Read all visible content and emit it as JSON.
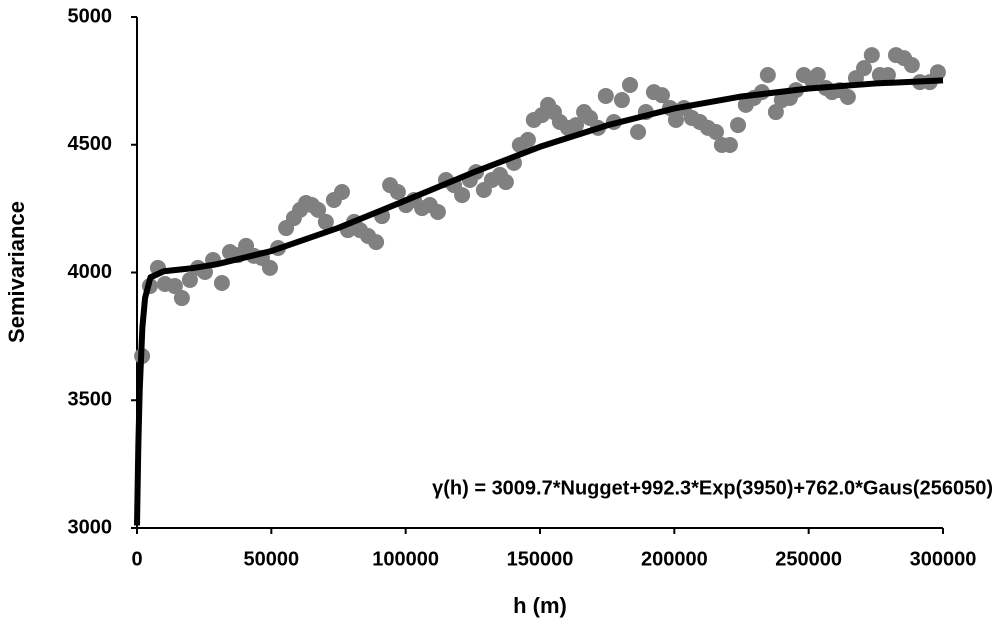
{
  "chart_data": {
    "type": "scatter",
    "xlabel": "h (m)",
    "ylabel": "Semivariance",
    "annotation": "γ(h) = 3009.7*Nugget+992.3*Exp(3950)+762.0*Gaus(256050)",
    "xlim": [
      0,
      300000
    ],
    "xticks": [
      0,
      50000,
      100000,
      150000,
      200000,
      250000,
      300000
    ],
    "ylim": [
      3000,
      5000
    ],
    "yticks": [
      3000,
      3500,
      4000,
      4500,
      5000
    ],
    "grid": false,
    "series": [
      {
        "type": "scatter",
        "color": "#808080",
        "x": [
          1900,
          4800,
          7800,
          10400,
          14100,
          16700,
          19700,
          22700,
          25300,
          28300,
          31600,
          34600,
          37600,
          40600,
          43500,
          46500,
          49500,
          52500,
          55500,
          58400,
          60700,
          62900,
          65100,
          67400,
          70300,
          73300,
          76300,
          78500,
          80800,
          83000,
          86000,
          89000,
          91200,
          94200,
          97100,
          100100,
          103100,
          106100,
          109000,
          112000,
          115000,
          118000,
          121000,
          123900,
          126200,
          129100,
          132100,
          135100,
          137300,
          140300,
          142500,
          145500,
          147700,
          150700,
          153000,
          155200,
          157400,
          160400,
          163400,
          166400,
          168600,
          171600,
          174500,
          177500,
          180500,
          183500,
          186500,
          189400,
          192400,
          195400,
          198400,
          200600,
          203600,
          206500,
          209500,
          212500,
          215500,
          217700,
          220700,
          223700,
          226600,
          229600,
          232600,
          234800,
          237800,
          240000,
          243000,
          245300,
          248200,
          251200,
          253400,
          256400,
          258700,
          261600,
          264600,
          267600,
          270600,
          273500,
          276500,
          279500,
          282500,
          285500,
          288400,
          291400,
          295100,
          298100
        ],
        "values": [
          3673,
          3947,
          4018,
          3955,
          3947,
          3900,
          3971,
          4018,
          4002,
          4049,
          3959,
          4080,
          4068,
          4104,
          4065,
          4057,
          4018,
          4096,
          4174,
          4213,
          4245,
          4272,
          4264,
          4245,
          4198,
          4284,
          4315,
          4166,
          4198,
          4166,
          4143,
          4119,
          4221,
          4342,
          4315,
          4264,
          4284,
          4252,
          4264,
          4237,
          4362,
          4342,
          4303,
          4362,
          4393,
          4323,
          4362,
          4382,
          4354,
          4429,
          4499,
          4519,
          4597,
          4616,
          4656,
          4628,
          4589,
          4566,
          4577,
          4628,
          4605,
          4566,
          4691,
          4589,
          4675,
          4734,
          4550,
          4628,
          4706,
          4694,
          4644,
          4597,
          4644,
          4605,
          4589,
          4566,
          4550,
          4499,
          4499,
          4577,
          4656,
          4683,
          4706,
          4773,
          4628,
          4675,
          4683,
          4714,
          4773,
          4753,
          4773,
          4722,
          4706,
          4714,
          4687,
          4761,
          4800,
          4851,
          4773,
          4773,
          4851,
          4839,
          4812,
          4745,
          4745,
          4784
        ]
      },
      {
        "type": "line",
        "color": "#000000",
        "x": [
          0,
          500,
          1000,
          2000,
          3000,
          5000,
          10000,
          20000,
          30000,
          50000,
          75000,
          100000,
          125000,
          150000,
          175000,
          200000,
          225000,
          250000,
          275000,
          300000
        ],
        "values": [
          3010,
          3324,
          3538,
          3785,
          3900,
          3981,
          4005,
          4016,
          4033,
          4084,
          4175,
          4282,
          4391,
          4492,
          4576,
          4642,
          4689,
          4720,
          4740,
          4752
        ]
      }
    ]
  }
}
